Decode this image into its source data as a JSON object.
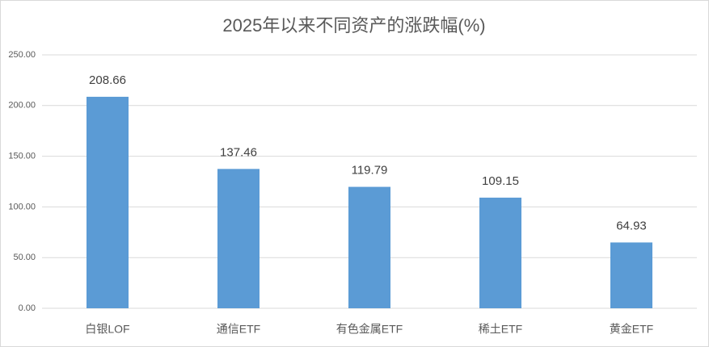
{
  "chart_data": {
    "type": "bar",
    "title": "2025年以来不同资产的涨跌幅(%)",
    "categories": [
      "白银LOF",
      "通信ETF",
      "有色金属ETF",
      "稀土ETF",
      "黄金ETF"
    ],
    "values": [
      208.66,
      137.46,
      119.79,
      109.15,
      64.93
    ],
    "color": "#5b9bd5",
    "ylim": [
      0,
      250
    ],
    "yticks": [
      {
        "value": 0,
        "label": "0.00"
      },
      {
        "value": 50,
        "label": "50.00"
      },
      {
        "value": 100,
        "label": "100.00"
      },
      {
        "value": 150,
        "label": "150.00"
      },
      {
        "value": 200,
        "label": "200.00"
      },
      {
        "value": 250,
        "label": "250.00"
      }
    ],
    "grid": true
  }
}
